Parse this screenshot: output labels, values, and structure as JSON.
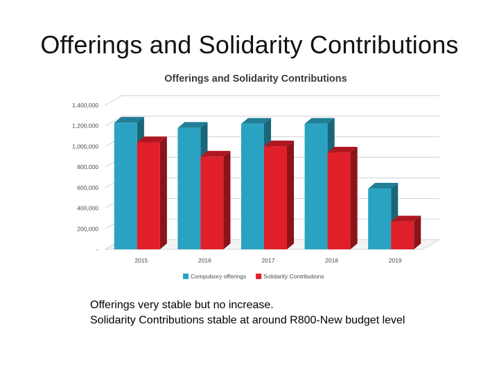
{
  "slide": {
    "title": "Offerings and Solidarity Contributions",
    "notes": [
      "Offerings very stable but no increase.",
      "Solidarity Contributions stable at around R800-New budget level"
    ]
  },
  "chart_data": {
    "type": "bar",
    "title": "Offerings and Solidarity Contributions",
    "categories": [
      "2015",
      "2016",
      "2017",
      "2018",
      "2019"
    ],
    "series": [
      {
        "name": "Compulsory offerings",
        "color": "#2aa3c2",
        "values": [
          1230000,
          1180000,
          1220000,
          1220000,
          590000
        ]
      },
      {
        "name": "Solidarity Contributions",
        "color": "#e01f2a",
        "values": [
          1040000,
          900000,
          1000000,
          940000,
          270000
        ]
      }
    ],
    "ylim": [
      0,
      1400000
    ],
    "yticks": [
      "-",
      "200,000",
      "400,000",
      "600,000",
      "800,000",
      "1,000,000",
      "1,200,000",
      "1,400,000"
    ],
    "xlabel": "",
    "ylabel": "",
    "grid": true,
    "legend": "bottom"
  }
}
